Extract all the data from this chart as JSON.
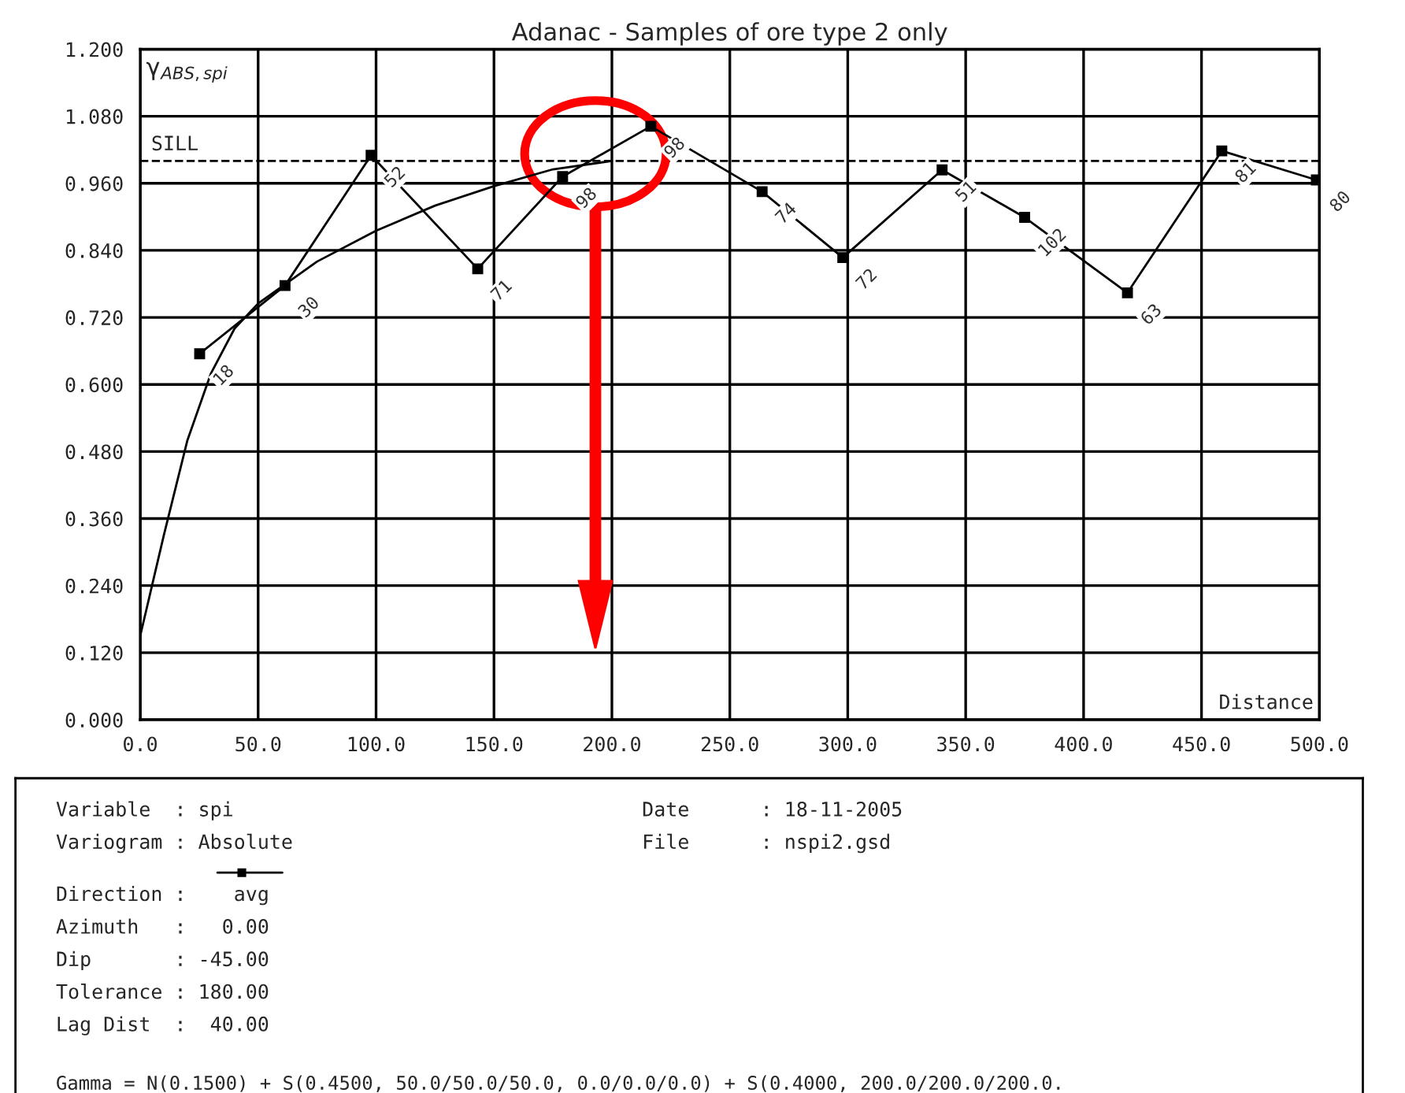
{
  "chart_data": {
    "type": "line",
    "title": "Adanac - Samples of ore type 2 only",
    "xlabel": "Distance",
    "ylabel": "γ$_{ABS,spi}$",
    "series": [
      {
        "color": "#000000",
        "marker": "square",
        "x": [
          25.2,
          61.4,
          97.9,
          143.1,
          179.1,
          216.5,
          263.7,
          297.9,
          340.0,
          375.0,
          418.6,
          458.6,
          498.7
        ],
        "values": [
          0.655,
          0.777,
          1.01,
          0.807,
          0.972,
          1.062,
          0.945,
          0.827,
          0.984,
          0.899,
          0.764,
          1.018,
          0.966
        ]
      },
      {
        "color": "#000000",
        "marker": "none",
        "x": [
          0,
          5,
          10,
          20,
          30,
          40,
          50,
          75,
          100,
          125,
          150,
          175,
          200
        ],
        "values": [
          0.15,
          0.24,
          0.33,
          0.5,
          0.62,
          0.7,
          0.745,
          0.82,
          0.875,
          0.92,
          0.955,
          0.985,
          1.0
        ]
      }
    ],
    "ref_lines": [
      {
        "axis": "y",
        "value": 1.0,
        "label": "SILL",
        "line_style": "dashed",
        "color": "#000000"
      }
    ],
    "xlim": [
      0,
      500
    ],
    "ylim": [
      0,
      1.2
    ],
    "xticks": [
      {
        "value": 0,
        "label": "0.0"
      },
      {
        "value": 50,
        "label": "50.0"
      },
      {
        "value": 100,
        "label": "100.0"
      },
      {
        "value": 150,
        "label": "150.0"
      },
      {
        "value": 200,
        "label": "200.0"
      },
      {
        "value": 250,
        "label": "250.0"
      },
      {
        "value": 300,
        "label": "300.0"
      },
      {
        "value": 350,
        "label": "350.0"
      },
      {
        "value": 400,
        "label": "400.0"
      },
      {
        "value": 450,
        "label": "450.0"
      },
      {
        "value": 500,
        "label": "500.0"
      }
    ],
    "yticks": [
      {
        "value": 0,
        "label": "0.000"
      },
      {
        "value": 0.12,
        "label": "0.120"
      },
      {
        "value": 0.24,
        "label": "0.240"
      },
      {
        "value": 0.36,
        "label": "0.360"
      },
      {
        "value": 0.48,
        "label": "0.480"
      },
      {
        "value": 0.6,
        "label": "0.600"
      },
      {
        "value": 0.72,
        "label": "0.720"
      },
      {
        "value": 0.84,
        "label": "0.840"
      },
      {
        "value": 0.96,
        "label": "0.960"
      },
      {
        "value": 1.08,
        "label": "1.080"
      },
      {
        "value": 1.2,
        "label": "1.200"
      }
    ],
    "grid": true,
    "annotations": [
      {
        "text": "18",
        "x": 25.2,
        "y": 0.655
      },
      {
        "text": "30",
        "x": 61.4,
        "y": 0.777
      },
      {
        "text": "52",
        "x": 97.9,
        "y": 1.01
      },
      {
        "text": "71",
        "x": 143.1,
        "y": 0.807
      },
      {
        "text": "98",
        "x": 179.1,
        "y": 0.972
      },
      {
        "text": "98",
        "x": 216.5,
        "y": 1.062
      },
      {
        "text": "74",
        "x": 263.7,
        "y": 0.945
      },
      {
        "text": "72",
        "x": 297.9,
        "y": 0.827
      },
      {
        "text": "51",
        "x": 340.0,
        "y": 0.984
      },
      {
        "text": "102",
        "x": 375.0,
        "y": 0.899
      },
      {
        "text": "63",
        "x": 418.6,
        "y": 0.764
      },
      {
        "text": "81",
        "x": 458.6,
        "y": 1.018
      },
      {
        "text": "80",
        "x": 498.7,
        "y": 0.966
      },
      "Variable  : spi",
      "Variogram : Absolute",
      "Direction :    avg",
      "Azimuth   :   0.00",
      "Dip       : -45.00",
      "Tolerance : 180.00",
      "Lag Dist  :  40.00",
      "Date      : 18-11-2005",
      "File      : nspi2.gsd",
      "Gamma = N(0.1500) + S(0.4500, 50.0/50.0/50.0, 0.0/0.0/0.0) + S(0.4000, 200.0/200.0/200.0."
    ]
  }
}
